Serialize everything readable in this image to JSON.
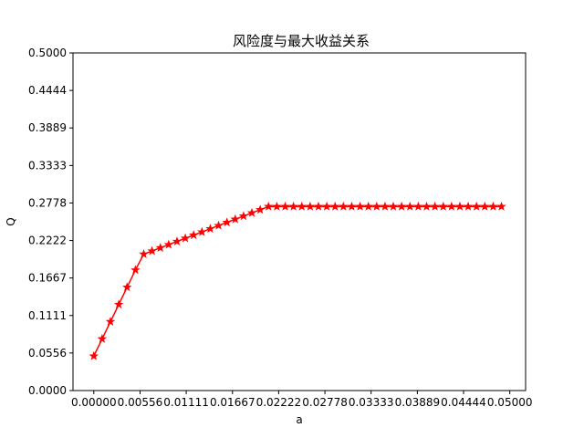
{
  "chart_data": {
    "type": "line",
    "title": "风险度与最大收益关系",
    "xlabel": "a",
    "ylabel": "Q",
    "xlim": [
      -0.0025,
      0.0519
    ],
    "ylim": [
      0.0,
      0.5
    ],
    "xticks": [
      "0.00000",
      "0.00556",
      "0.01111",
      "0.01667",
      "0.02222",
      "0.02778",
      "0.03333",
      "0.03889",
      "0.04444",
      "0.05000"
    ],
    "yticks": [
      "0.0000",
      "0.0556",
      "0.1111",
      "0.1667",
      "0.2222",
      "0.2778",
      "0.3333",
      "0.3889",
      "0.4444",
      "0.5000"
    ],
    "grid": false,
    "series": [
      {
        "color": "#ff0000",
        "marker": "star",
        "x": [
          0.0,
          0.001,
          0.002,
          0.003,
          0.004,
          0.005,
          0.006,
          0.007,
          0.008,
          0.009,
          0.01,
          0.011,
          0.012,
          0.013,
          0.014,
          0.015,
          0.016,
          0.017,
          0.018,
          0.019,
          0.02,
          0.021,
          0.022,
          0.023,
          0.024,
          0.025,
          0.026,
          0.027,
          0.028,
          0.029,
          0.03,
          0.031,
          0.032,
          0.033,
          0.034,
          0.035,
          0.036,
          0.037,
          0.038,
          0.039,
          0.04,
          0.041,
          0.042,
          0.043,
          0.044,
          0.045,
          0.046,
          0.047,
          0.048,
          0.049
        ],
        "y": [
          0.051,
          0.0765,
          0.102,
          0.1275,
          0.153,
          0.1785,
          0.202,
          0.2067,
          0.2114,
          0.2161,
          0.2208,
          0.2255,
          0.2302,
          0.2349,
          0.2396,
          0.2443,
          0.249,
          0.2537,
          0.2584,
          0.2631,
          0.2678,
          0.2725,
          0.2725,
          0.2725,
          0.2725,
          0.2725,
          0.2725,
          0.2725,
          0.2725,
          0.2725,
          0.2725,
          0.2725,
          0.2725,
          0.2725,
          0.2725,
          0.2725,
          0.2725,
          0.2725,
          0.2725,
          0.2725,
          0.2725,
          0.2725,
          0.2725,
          0.2725,
          0.2725,
          0.2725,
          0.2725,
          0.2725,
          0.2725,
          0.2725
        ]
      }
    ]
  }
}
